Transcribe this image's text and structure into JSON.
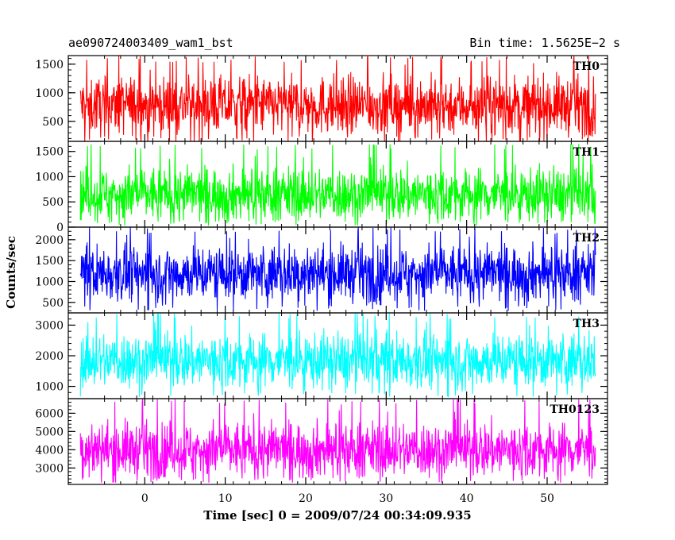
{
  "chart_data": {
    "type": "line",
    "header": {
      "left": "ae090724003409_wam1_bst",
      "right": "Bin time: 1.5625E−2 s"
    },
    "xlabel": "Time [sec] 0 = 2009/07/24 00:34:09.935",
    "ylabel": "Counts/sec",
    "xlim": [
      -9.5,
      57.5
    ],
    "x_ticks": [
      0,
      10,
      20,
      30,
      40,
      50
    ],
    "x_tick_labels": [
      "0",
      "10",
      "20",
      "30",
      "40",
      "50"
    ],
    "data_x_range": [
      -8,
      56
    ],
    "panels": [
      {
        "name": "TH0",
        "color": "#ff0000",
        "ylim": [
          150,
          1650
        ],
        "yticks": [
          500,
          1000,
          1500
        ],
        "ytick_labels": [
          "500",
          "1000",
          "1500"
        ],
        "signal": {
          "mean": 780,
          "min": 120,
          "max": 1650
        }
      },
      {
        "name": "TH1",
        "color": "#00ff00",
        "ylim": [
          0,
          1700
        ],
        "yticks": [
          0,
          500,
          1000,
          1500
        ],
        "ytick_labels": [
          "0",
          "500",
          "1000",
          "1500"
        ],
        "signal": {
          "mean": 650,
          "min": 30,
          "max": 1650
        }
      },
      {
        "name": "TH2",
        "color": "#0000ff",
        "ylim": [
          250,
          2300
        ],
        "yticks": [
          500,
          1000,
          1500,
          2000
        ],
        "ytick_labels": [
          "500",
          "1000",
          "1500",
          "2000"
        ],
        "signal": {
          "mean": 1200,
          "min": 300,
          "max": 2300
        }
      },
      {
        "name": "TH3",
        "color": "#00ffff",
        "ylim": [
          600,
          3400
        ],
        "yticks": [
          1000,
          2000,
          3000
        ],
        "ytick_labels": [
          "1000",
          "2000",
          "3000"
        ],
        "signal": {
          "mean": 1850,
          "min": 650,
          "max": 3400
        }
      },
      {
        "name": "TH0123",
        "color": "#ff00ff",
        "ylim": [
          2100,
          6800
        ],
        "yticks": [
          3000,
          4000,
          5000,
          6000
        ],
        "ytick_labels": [
          "3000",
          "4000",
          "5000",
          "6000"
        ],
        "signal": {
          "mean": 4000,
          "min": 2200,
          "max": 6800
        }
      }
    ]
  }
}
